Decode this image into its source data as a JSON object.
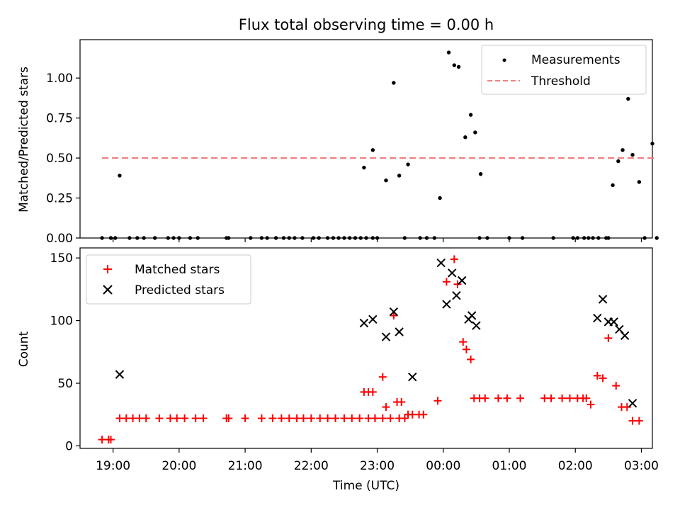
{
  "chart_data": [
    {
      "type": "scatter",
      "title": "Flux total observing time = 0.00 h",
      "xlabel": "",
      "ylabel": "Matched/Predicted stars",
      "xlim": [
        "18:30",
        "03:10"
      ],
      "ylim": [
        0,
        1.24
      ],
      "yticks": [
        "0.00",
        "0.25",
        "0.50",
        "0.75",
        "1.00"
      ],
      "legend_position": "top-right",
      "grid": false,
      "series": [
        {
          "name": "Measurements",
          "marker": "dot",
          "color": "#000000",
          "points": [
            [
              "18:50",
              0
            ],
            [
              "18:58",
              0
            ],
            [
              "19:02",
              0
            ],
            [
              "19:06",
              0.39
            ],
            [
              "19:15",
              0
            ],
            [
              "19:22",
              0
            ],
            [
              "19:28",
              0
            ],
            [
              "19:38",
              0
            ],
            [
              "19:50",
              0
            ],
            [
              "19:55",
              0
            ],
            [
              "20:00",
              0
            ],
            [
              "20:10",
              0
            ],
            [
              "20:17",
              0
            ],
            [
              "20:43",
              0
            ],
            [
              "20:45",
              0
            ],
            [
              "21:05",
              0
            ],
            [
              "21:15",
              0
            ],
            [
              "21:20",
              0
            ],
            [
              "21:28",
              0
            ],
            [
              "21:35",
              0
            ],
            [
              "21:40",
              0
            ],
            [
              "21:45",
              0
            ],
            [
              "21:52",
              0
            ],
            [
              "22:02",
              0
            ],
            [
              "22:07",
              0
            ],
            [
              "22:15",
              0
            ],
            [
              "22:20",
              0
            ],
            [
              "22:25",
              0
            ],
            [
              "22:30",
              0
            ],
            [
              "22:35",
              0
            ],
            [
              "22:40",
              0
            ],
            [
              "22:45",
              0
            ],
            [
              "22:50",
              0
            ],
            [
              "22:56",
              0
            ],
            [
              "23:00",
              0
            ],
            [
              "22:48",
              0.44
            ],
            [
              "22:56",
              0.55
            ],
            [
              "23:08",
              0.36
            ],
            [
              "23:15",
              0.97
            ],
            [
              "23:20",
              0.39
            ],
            [
              "23:28",
              0.46
            ],
            [
              "23:25",
              0
            ],
            [
              "23:39",
              0
            ],
            [
              "23:45",
              0
            ],
            [
              "23:52",
              0
            ],
            [
              "23:57",
              0.25
            ],
            [
              "24:05",
              1.16
            ],
            [
              "24:10",
              1.08
            ],
            [
              "24:14",
              1.07
            ],
            [
              "24:20",
              0.63
            ],
            [
              "24:25",
              0.77
            ],
            [
              "24:29",
              0.66
            ],
            [
              "24:34",
              0.4
            ],
            [
              "24:33",
              0
            ],
            [
              "24:40",
              0
            ],
            [
              "25:00",
              0
            ],
            [
              "25:12",
              0
            ],
            [
              "25:40",
              0
            ],
            [
              "25:58",
              0
            ],
            [
              "26:02",
              0
            ],
            [
              "26:08",
              0
            ],
            [
              "26:12",
              0
            ],
            [
              "26:16",
              0
            ],
            [
              "26:21",
              0
            ],
            [
              "26:28",
              0
            ],
            [
              "26:30",
              0
            ],
            [
              "26:34",
              0.33
            ],
            [
              "26:39",
              0.48
            ],
            [
              "26:43",
              0.55
            ],
            [
              "26:48",
              0.87
            ],
            [
              "26:52",
              0.52
            ],
            [
              "26:58",
              0.35
            ],
            [
              "27:03",
              0
            ],
            [
              "27:10",
              0.59
            ],
            [
              "27:14",
              0
            ]
          ]
        },
        {
          "name": "Threshold",
          "marker": "dashed-line",
          "color": "#f08080",
          "x_range": [
            "18:50",
            "27:14"
          ],
          "value": 0.5
        }
      ]
    },
    {
      "type": "scatter",
      "title": "",
      "xlabel": "Time (UTC)",
      "ylabel": "Count",
      "xlim": [
        "18:30",
        "03:10"
      ],
      "ylim": [
        -2,
        158
      ],
      "yticks": [
        "0",
        "50",
        "100",
        "150"
      ],
      "xticks": [
        "19:00",
        "20:00",
        "21:00",
        "22:00",
        "23:00",
        "00:00",
        "01:00",
        "02:00",
        "03:00"
      ],
      "legend_position": "top-left",
      "grid": false,
      "series": [
        {
          "name": "Matched stars",
          "marker": "plus",
          "color": "#ff0000",
          "points": [
            [
              "18:50",
              5
            ],
            [
              "18:56",
              5
            ],
            [
              "18:58",
              5
            ],
            [
              "19:06",
              22
            ],
            [
              "19:12",
              22
            ],
            [
              "19:18",
              22
            ],
            [
              "19:24",
              22
            ],
            [
              "19:30",
              22
            ],
            [
              "19:42",
              22
            ],
            [
              "19:52",
              22
            ],
            [
              "19:58",
              22
            ],
            [
              "20:05",
              22
            ],
            [
              "20:15",
              22
            ],
            [
              "20:22",
              22
            ],
            [
              "20:43",
              22
            ],
            [
              "20:45",
              22
            ],
            [
              "21:00",
              22
            ],
            [
              "21:15",
              22
            ],
            [
              "21:25",
              22
            ],
            [
              "21:33",
              22
            ],
            [
              "21:40",
              22
            ],
            [
              "21:47",
              22
            ],
            [
              "21:53",
              22
            ],
            [
              "22:00",
              22
            ],
            [
              "22:08",
              22
            ],
            [
              "22:15",
              22
            ],
            [
              "22:22",
              22
            ],
            [
              "22:30",
              22
            ],
            [
              "22:37",
              22
            ],
            [
              "22:44",
              22
            ],
            [
              "22:52",
              22
            ],
            [
              "22:58",
              22
            ],
            [
              "23:05",
              22
            ],
            [
              "23:12",
              22
            ],
            [
              "23:20",
              22
            ],
            [
              "23:25",
              22
            ],
            [
              "22:58",
              22
            ],
            [
              "22:48",
              43
            ],
            [
              "22:52",
              43
            ],
            [
              "22:56",
              43
            ],
            [
              "23:05",
              55
            ],
            [
              "23:08",
              31
            ],
            [
              "23:15",
              104
            ],
            [
              "23:18",
              35
            ],
            [
              "23:22",
              35
            ],
            [
              "23:28",
              25
            ],
            [
              "23:32",
              25
            ],
            [
              "23:38",
              25
            ],
            [
              "23:42",
              25
            ],
            [
              "23:55",
              36
            ],
            [
              "24:03",
              131
            ],
            [
              "24:10",
              149
            ],
            [
              "24:13",
              129
            ],
            [
              "24:18",
              83
            ],
            [
              "24:21",
              77
            ],
            [
              "24:25",
              69
            ],
            [
              "24:28",
              38
            ],
            [
              "24:33",
              38
            ],
            [
              "24:38",
              38
            ],
            [
              "24:50",
              38
            ],
            [
              "24:58",
              38
            ],
            [
              "25:10",
              38
            ],
            [
              "25:32",
              38
            ],
            [
              "25:38",
              38
            ],
            [
              "25:48",
              38
            ],
            [
              "25:55",
              38
            ],
            [
              "26:02",
              38
            ],
            [
              "26:07",
              38
            ],
            [
              "26:10",
              38
            ],
            [
              "26:14",
              33
            ],
            [
              "26:20",
              56
            ],
            [
              "26:25",
              54
            ],
            [
              "26:30",
              86
            ],
            [
              "26:37",
              48
            ],
            [
              "26:42",
              31
            ],
            [
              "26:47",
              31
            ],
            [
              "26:52",
              20
            ],
            [
              "26:58",
              20
            ]
          ]
        },
        {
          "name": "Predicted stars",
          "marker": "x",
          "color": "#000000",
          "points": [
            [
              "19:06",
              57
            ],
            [
              "22:48",
              98
            ],
            [
              "22:56",
              101
            ],
            [
              "23:08",
              87
            ],
            [
              "23:15",
              107
            ],
            [
              "23:20",
              91
            ],
            [
              "23:32",
              55
            ],
            [
              "23:58",
              146
            ],
            [
              "24:03",
              113
            ],
            [
              "24:08",
              138
            ],
            [
              "24:12",
              120
            ],
            [
              "24:17",
              132
            ],
            [
              "24:23",
              101
            ],
            [
              "24:26",
              104
            ],
            [
              "24:30",
              96
            ],
            [
              "26:20",
              102
            ],
            [
              "26:25",
              117
            ],
            [
              "26:30",
              99
            ],
            [
              "26:35",
              99
            ],
            [
              "26:40",
              93
            ],
            [
              "26:45",
              88
            ],
            [
              "26:52",
              34
            ]
          ]
        }
      ]
    }
  ]
}
